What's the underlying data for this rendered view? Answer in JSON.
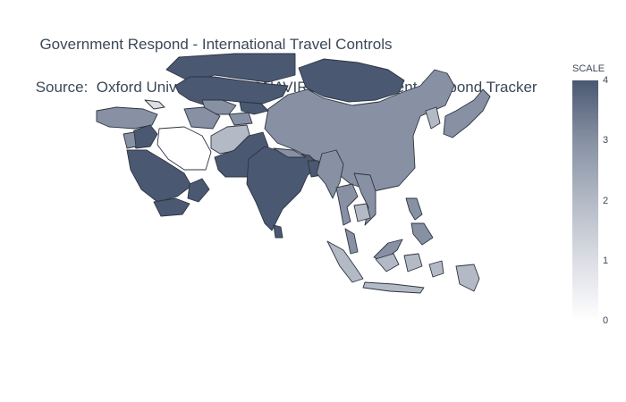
{
  "title": {
    "line1": "Government Respond - International Travel Controls",
    "line2": " Source:  Oxford University CORONAVIRUS Government Respond Tracker"
  },
  "colorbar": {
    "title": "SCALE",
    "ticks": [
      "4",
      "3",
      "2",
      "1",
      "0"
    ],
    "range": [
      0,
      4
    ],
    "colorscale": [
      "#ffffff",
      "#dcdee4",
      "#b3bac6",
      "#8791a3",
      "#4a5872"
    ]
  },
  "chart_data": {
    "type": "choropleth",
    "region": "Asia",
    "value_label": "SCALE",
    "countries": [
      {
        "name": "Russia",
        "value": 4
      },
      {
        "name": "Kazakhstan",
        "value": 4
      },
      {
        "name": "Mongolia",
        "value": 4
      },
      {
        "name": "China",
        "value": 3
      },
      {
        "name": "Turkey",
        "value": 3
      },
      {
        "name": "Saudi Arabia",
        "value": 4
      },
      {
        "name": "Yemen",
        "value": 4
      },
      {
        "name": "Oman",
        "value": 4
      },
      {
        "name": "Iraq",
        "value": 4
      },
      {
        "name": "Iran",
        "value": 0
      },
      {
        "name": "Afghanistan",
        "value": 2
      },
      {
        "name": "Pakistan",
        "value": 4
      },
      {
        "name": "India",
        "value": 4
      },
      {
        "name": "Nepal",
        "value": 3
      },
      {
        "name": "Bangladesh",
        "value": 4
      },
      {
        "name": "Myanmar",
        "value": 3
      },
      {
        "name": "Thailand",
        "value": 3
      },
      {
        "name": "Vietnam",
        "value": 3
      },
      {
        "name": "Cambodia",
        "value": 2
      },
      {
        "name": "Malaysia",
        "value": 3
      },
      {
        "name": "Indonesia",
        "value": 2
      },
      {
        "name": "Philippines",
        "value": 3
      },
      {
        "name": "Japan",
        "value": 3
      },
      {
        "name": "South Korea",
        "value": 2
      },
      {
        "name": "Uzbekistan",
        "value": 3
      },
      {
        "name": "Turkmenistan",
        "value": 3
      },
      {
        "name": "Kyrgyzstan",
        "value": 4
      },
      {
        "name": "Tajikistan",
        "value": 3
      },
      {
        "name": "Sri Lanka",
        "value": 4
      },
      {
        "name": "Papua New Guinea",
        "value": 2
      },
      {
        "name": "Georgia",
        "value": 1
      },
      {
        "name": "Jordan",
        "value": 3
      }
    ]
  }
}
